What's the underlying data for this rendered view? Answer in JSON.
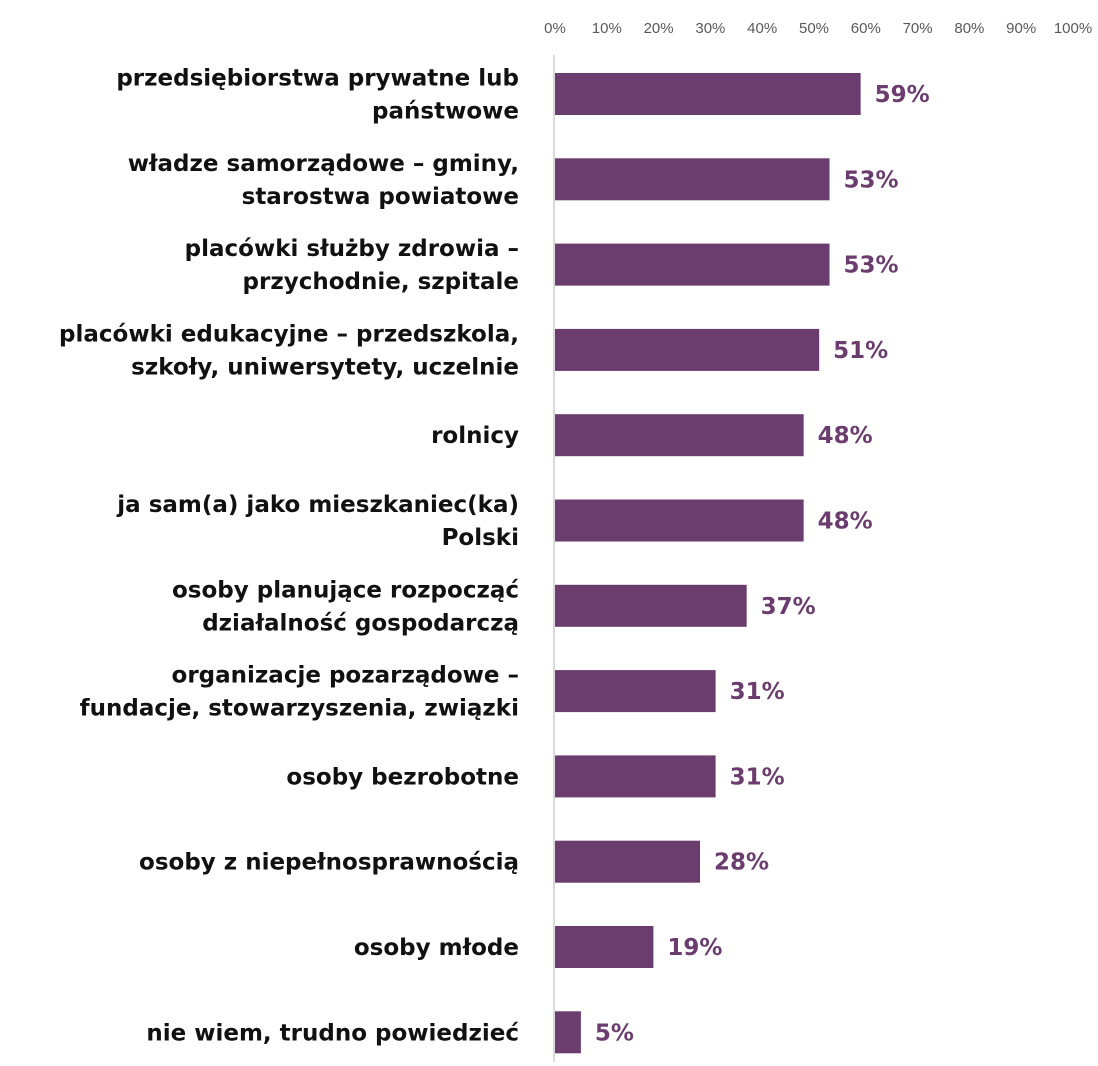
{
  "chart_data": {
    "type": "bar",
    "orientation": "horizontal",
    "xlim": [
      0,
      100
    ],
    "x_ticks": [
      "0%",
      "10%",
      "20%",
      "30%",
      "40%",
      "50%",
      "60%",
      "70%",
      "80%",
      "90%",
      "100%"
    ],
    "categories": [
      [
        "przedsiębiorstwa prywatne lub",
        "państwowe"
      ],
      [
        "władze samorządowe – gminy,",
        "starostwa powiatowe"
      ],
      [
        "placówki służby zdrowia –",
        "przychodnie, szpitale"
      ],
      [
        "placówki edukacyjne – przedszkola,",
        "szkoły, uniwersytety, uczelnie"
      ],
      [
        "rolnicy"
      ],
      [
        "ja sam(a) jako mieszkaniec(ka)",
        "Polski"
      ],
      [
        "osoby planujące rozpocząć",
        "działalność gospodarczą"
      ],
      [
        "organizacje pozarządowe –",
        "fundacje, stowarzyszenia, związki"
      ],
      [
        "osoby bezrobotne"
      ],
      [
        "osoby z niepełnosprawnością"
      ],
      [
        "osoby młode"
      ],
      [
        "nie wiem, trudno powiedzieć"
      ]
    ],
    "values": [
      59,
      53,
      53,
      51,
      48,
      48,
      37,
      31,
      31,
      28,
      19,
      5
    ],
    "value_labels": [
      "59%",
      "53%",
      "53%",
      "51%",
      "48%",
      "48%",
      "37%",
      "31%",
      "31%",
      "28%",
      "19%",
      "5%"
    ],
    "bar_color": "#6b3d6e",
    "label_color": "#6b3d6e",
    "grid": false,
    "axis_line_color": "#d9d9d9",
    "legend": "none"
  }
}
